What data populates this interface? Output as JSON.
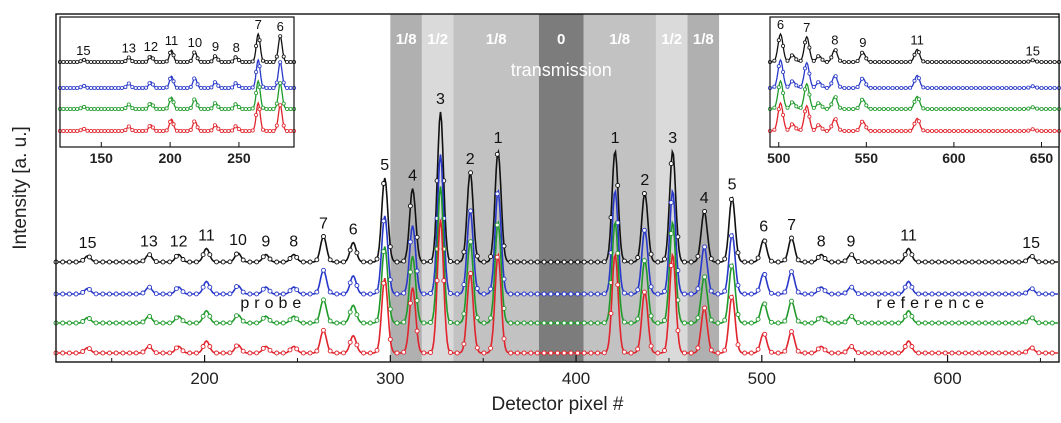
{
  "chart_data": {
    "type": "line",
    "xlabel": "Detector pixel #",
    "ylabel": "Intensity [a. u.]",
    "xlim": [
      120,
      660
    ],
    "x_ticks": [
      "200",
      "300",
      "400",
      "500",
      "600"
    ],
    "grid": false,
    "colors": {
      "black": "#111111",
      "blue": "#2838c8",
      "green": "#1f9a2a",
      "red": "#e0242c"
    },
    "series_colors": [
      "black",
      "blue",
      "green",
      "red"
    ],
    "bands": [
      {
        "label": "1/8",
        "x": [
          300,
          317
        ],
        "shade": "#b0b0b0"
      },
      {
        "label": "1/2",
        "x": [
          317,
          334
        ],
        "shade": "#dadada"
      },
      {
        "label": "1/8",
        "x": [
          334,
          380
        ],
        "shade": "#c2c2c2"
      },
      {
        "label": "0",
        "x": [
          380,
          404
        ],
        "shade": "#7c7c7c"
      },
      {
        "label": "1/8",
        "x": [
          404,
          443
        ],
        "shade": "#c2c2c2"
      },
      {
        "label": "1/2",
        "x": [
          443,
          460
        ],
        "shade": "#dadada"
      },
      {
        "label": "1/8",
        "x": [
          460,
          477
        ],
        "shade": "#b0b0b0"
      }
    ],
    "band_title": "transmission",
    "text_labels": [
      "probe",
      "reference"
    ],
    "peaks": [
      {
        "label": "15",
        "x": 137,
        "h": 0.04
      },
      {
        "label": "13",
        "x": 170,
        "h": 0.05
      },
      {
        "label": "12",
        "x": 186,
        "h": 0.05
      },
      {
        "label": "11",
        "x": 201,
        "h": 0.09
      },
      {
        "label": "10",
        "x": 218,
        "h": 0.06
      },
      {
        "label": "9",
        "x": 233,
        "h": 0.05
      },
      {
        "label": "8",
        "x": 248,
        "h": 0.05
      },
      {
        "label": "7",
        "x": 264,
        "h": 0.17
      },
      {
        "label": "6",
        "x": 280,
        "h": 0.13
      },
      {
        "label": "5",
        "x": 297,
        "h": 0.56
      },
      {
        "label": "4",
        "x": 312,
        "h": 0.49
      },
      {
        "label": "3",
        "x": 327,
        "h": 1.0
      },
      {
        "label": "2",
        "x": 343,
        "h": 0.6
      },
      {
        "label": "1",
        "x": 358,
        "h": 0.74
      },
      {
        "label": "1",
        "x": 421,
        "h": 0.74
      },
      {
        "label": "2",
        "x": 437,
        "h": 0.46
      },
      {
        "label": "3",
        "x": 452,
        "h": 0.74
      },
      {
        "label": "4",
        "x": 469,
        "h": 0.34
      },
      {
        "label": "5",
        "x": 484,
        "h": 0.43
      },
      {
        "label": "6",
        "x": 501,
        "h": 0.15
      },
      {
        "label": "7",
        "x": 516,
        "h": 0.16
      },
      {
        "label": "8",
        "x": 532,
        "h": 0.05
      },
      {
        "label": "9",
        "x": 548,
        "h": 0.05
      },
      {
        "label": "11",
        "x": 579,
        "h": 0.09
      },
      {
        "label": "15",
        "x": 645,
        "h": 0.04
      }
    ],
    "insets": [
      {
        "name": "left",
        "xlim": [
          120,
          290
        ],
        "x_ticks": [
          "150",
          "200",
          "250"
        ],
        "peaks": [
          {
            "label": "15",
            "x": 137,
            "h": 0.08
          },
          {
            "label": "13",
            "x": 170,
            "h": 0.16
          },
          {
            "label": "12",
            "x": 186,
            "h": 0.22
          },
          {
            "label": "11",
            "x": 201,
            "h": 0.42
          },
          {
            "label": "10",
            "x": 218,
            "h": 0.36
          },
          {
            "label": "9",
            "x": 233,
            "h": 0.22
          },
          {
            "label": "8",
            "x": 248,
            "h": 0.18
          },
          {
            "label": "7",
            "x": 264,
            "h": 1.0
          },
          {
            "label": "6",
            "x": 280,
            "h": 0.92
          }
        ]
      },
      {
        "name": "right",
        "xlim": [
          495,
          660
        ],
        "x_ticks": [
          "500",
          "550",
          "600",
          "650"
        ],
        "peaks": [
          {
            "label": "6",
            "x": 501,
            "h": 1.0
          },
          {
            "label": "",
            "x": 508,
            "h": 0.25
          },
          {
            "label": "7",
            "x": 516,
            "h": 0.9
          },
          {
            "label": "",
            "x": 523,
            "h": 0.22
          },
          {
            "label": "8",
            "x": 532,
            "h": 0.45
          },
          {
            "label": "9",
            "x": 548,
            "h": 0.35
          },
          {
            "label": "11",
            "x": 579,
            "h": 0.45
          },
          {
            "label": "15",
            "x": 645,
            "h": 0.06
          }
        ]
      }
    ]
  }
}
